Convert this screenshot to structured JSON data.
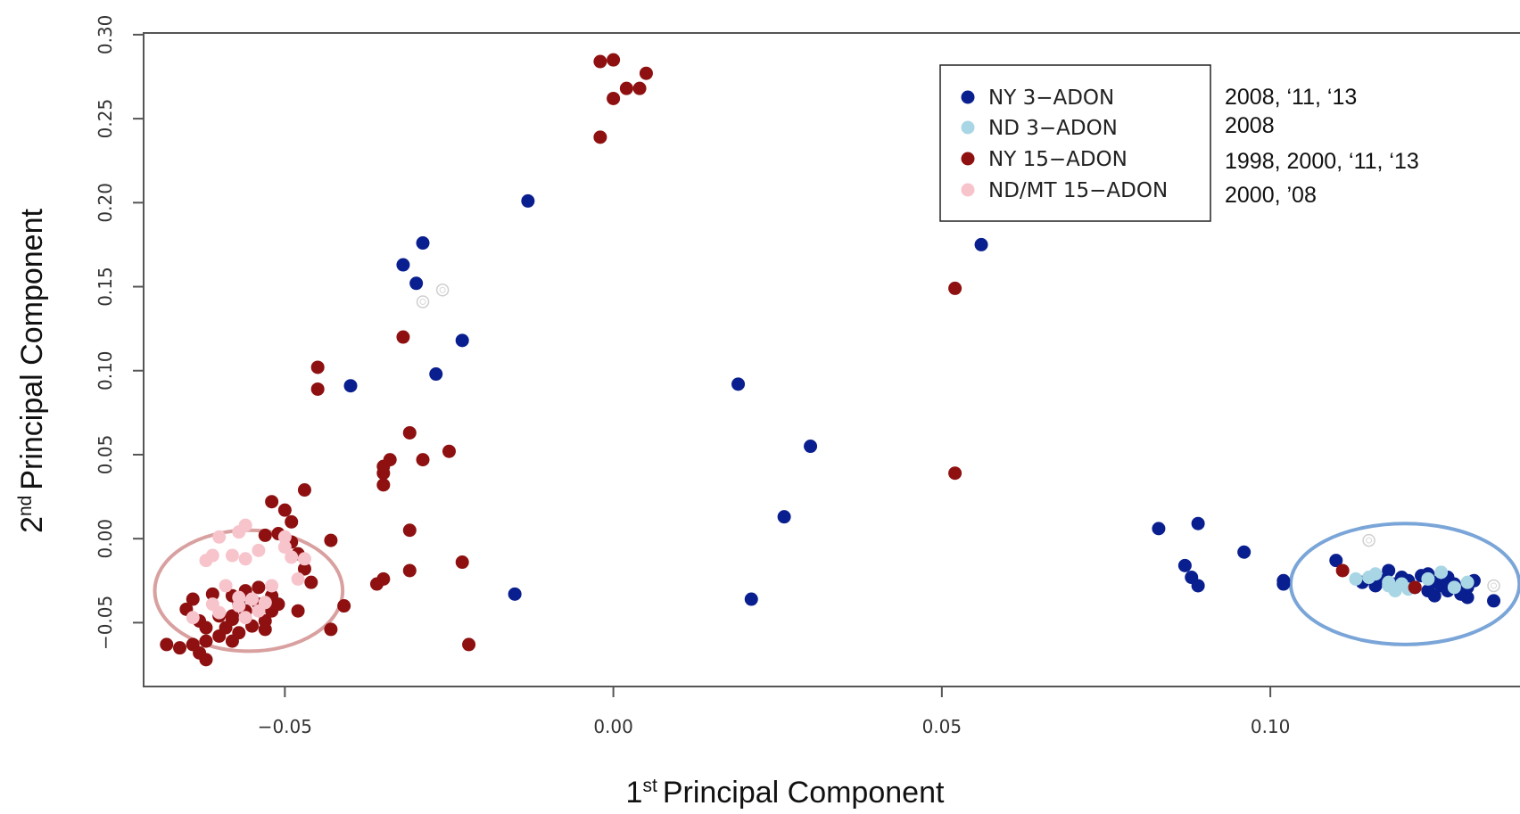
{
  "chart_data": {
    "type": "scatter",
    "xlabel": {
      "ordinal": "1",
      "suffix": "st",
      "text": "Principal Component"
    },
    "ylabel": {
      "ordinal": "2",
      "suffix": "nd",
      "text": "Principal Component"
    },
    "xlim": [
      -0.0715,
      0.138
    ],
    "ylim": [
      -0.088,
      0.301
    ],
    "x_ticks": [
      {
        "value": -0.05,
        "label": "−0.05"
      },
      {
        "value": 0.0,
        "label": "0.00"
      },
      {
        "value": 0.05,
        "label": "0.05"
      },
      {
        "value": 0.1,
        "label": "0.10"
      }
    ],
    "y_ticks": [
      {
        "value": -0.05,
        "label": "−0.05"
      },
      {
        "value": 0.0,
        "label": "0.00"
      },
      {
        "value": 0.05,
        "label": "0.05"
      },
      {
        "value": 0.1,
        "label": "0.10"
      },
      {
        "value": 0.15,
        "label": "0.15"
      },
      {
        "value": 0.2,
        "label": "0.20"
      },
      {
        "value": 0.25,
        "label": "0.25"
      },
      {
        "value": 0.3,
        "label": "0.30"
      }
    ],
    "grid": false,
    "legend_position": "top-right",
    "series": [
      {
        "name": "NY 3−ADON",
        "note": "2008, ‘11, ‘13",
        "color": "#0a1f8f",
        "points": [
          [
            -0.013,
            0.201
          ],
          [
            -0.029,
            0.176
          ],
          [
            -0.032,
            0.163
          ],
          [
            -0.03,
            0.152
          ],
          [
            -0.023,
            0.118
          ],
          [
            -0.027,
            0.098
          ],
          [
            -0.04,
            0.091
          ],
          [
            -0.015,
            -0.033
          ],
          [
            0.019,
            0.092
          ],
          [
            0.03,
            0.055
          ],
          [
            0.026,
            0.013
          ],
          [
            0.021,
            -0.036
          ],
          [
            0.056,
            0.175
          ],
          [
            0.083,
            0.006
          ],
          [
            0.089,
            0.009
          ],
          [
            0.096,
            -0.008
          ],
          [
            0.087,
            -0.016
          ],
          [
            0.088,
            -0.023
          ],
          [
            0.089,
            -0.028
          ],
          [
            0.102,
            -0.025
          ],
          [
            0.102,
            -0.027
          ],
          [
            0.11,
            -0.013
          ],
          [
            0.114,
            -0.026
          ],
          [
            0.116,
            -0.028
          ],
          [
            0.117,
            -0.025
          ],
          [
            0.118,
            -0.019
          ],
          [
            0.12,
            -0.023
          ],
          [
            0.121,
            -0.025
          ],
          [
            0.122,
            -0.029
          ],
          [
            0.123,
            -0.022
          ],
          [
            0.124,
            -0.031
          ],
          [
            0.125,
            -0.026
          ],
          [
            0.125,
            -0.034
          ],
          [
            0.126,
            -0.028
          ],
          [
            0.127,
            -0.023
          ],
          [
            0.127,
            -0.031
          ],
          [
            0.128,
            -0.027
          ],
          [
            0.129,
            -0.033
          ],
          [
            0.13,
            -0.029
          ],
          [
            0.13,
            -0.035
          ],
          [
            0.134,
            -0.037
          ],
          [
            0.131,
            -0.025
          ],
          [
            0.124,
            -0.021
          ],
          [
            0.119,
            -0.027
          ]
        ]
      },
      {
        "name": "ND 3−ADON",
        "note": "2008",
        "color": "#a9d6e5",
        "points": [
          [
            0.113,
            -0.024
          ],
          [
            0.115,
            -0.023
          ],
          [
            0.116,
            -0.021
          ],
          [
            0.118,
            -0.028
          ],
          [
            0.119,
            -0.031
          ],
          [
            0.12,
            -0.027
          ],
          [
            0.124,
            -0.024
          ],
          [
            0.126,
            -0.02
          ],
          [
            0.128,
            -0.029
          ],
          [
            0.13,
            -0.026
          ],
          [
            0.121,
            -0.03
          ],
          [
            0.118,
            -0.026
          ]
        ]
      },
      {
        "name": "NY 15−ADON",
        "note": "1998, 2000, ‘11, ‘13",
        "color": "#8e1010",
        "points": [
          [
            -0.002,
            0.239
          ],
          [
            -0.002,
            0.284
          ],
          [
            0.0,
            0.285
          ],
          [
            0.0,
            0.262
          ],
          [
            0.002,
            0.268
          ],
          [
            0.004,
            0.268
          ],
          [
            0.005,
            0.277
          ],
          [
            -0.032,
            0.12
          ],
          [
            -0.045,
            0.102
          ],
          [
            -0.045,
            0.089
          ],
          [
            -0.031,
            0.063
          ],
          [
            -0.034,
            0.047
          ],
          [
            -0.035,
            0.043
          ],
          [
            -0.035,
            0.039
          ],
          [
            -0.035,
            0.032
          ],
          [
            -0.029,
            0.047
          ],
          [
            -0.025,
            0.052
          ],
          [
            -0.031,
            0.005
          ],
          [
            -0.031,
            -0.019
          ],
          [
            -0.035,
            -0.024
          ],
          [
            -0.036,
            -0.027
          ],
          [
            -0.023,
            -0.014
          ],
          [
            -0.022,
            -0.063
          ],
          [
            0.052,
            0.149
          ],
          [
            0.052,
            0.039
          ],
          [
            0.111,
            -0.019
          ],
          [
            0.122,
            -0.029
          ],
          [
            -0.047,
            0.029
          ],
          [
            -0.052,
            0.022
          ],
          [
            -0.05,
            0.017
          ],
          [
            -0.049,
            0.01
          ],
          [
            -0.051,
            0.003
          ],
          [
            -0.053,
            0.002
          ],
          [
            -0.049,
            -0.002
          ],
          [
            -0.048,
            -0.009
          ],
          [
            -0.043,
            -0.001
          ],
          [
            -0.047,
            -0.018
          ],
          [
            -0.046,
            -0.026
          ],
          [
            -0.041,
            -0.04
          ],
          [
            -0.043,
            -0.054
          ],
          [
            -0.048,
            -0.043
          ],
          [
            -0.054,
            -0.029
          ],
          [
            -0.056,
            -0.031
          ],
          [
            -0.058,
            -0.034
          ],
          [
            -0.061,
            -0.033
          ],
          [
            -0.064,
            -0.036
          ],
          [
            -0.065,
            -0.042
          ],
          [
            -0.063,
            -0.049
          ],
          [
            -0.062,
            -0.053
          ],
          [
            -0.06,
            -0.058
          ],
          [
            -0.058,
            -0.061
          ],
          [
            -0.057,
            -0.056
          ],
          [
            -0.055,
            -0.052
          ],
          [
            -0.053,
            -0.049
          ],
          [
            -0.052,
            -0.043
          ],
          [
            -0.051,
            -0.039
          ],
          [
            -0.052,
            -0.034
          ],
          [
            -0.054,
            -0.039
          ],
          [
            -0.056,
            -0.043
          ],
          [
            -0.058,
            -0.046
          ],
          [
            -0.06,
            -0.046
          ],
          [
            -0.062,
            -0.061
          ],
          [
            -0.064,
            -0.063
          ],
          [
            -0.066,
            -0.065
          ],
          [
            -0.068,
            -0.063
          ],
          [
            -0.063,
            -0.068
          ],
          [
            -0.062,
            -0.072
          ],
          [
            -0.058,
            -0.048
          ],
          [
            -0.053,
            -0.054
          ],
          [
            -0.055,
            -0.036
          ],
          [
            -0.057,
            -0.039
          ],
          [
            -0.059,
            -0.053
          ]
        ]
      },
      {
        "name": "ND/MT 15−ADON",
        "note": "2000, ’08",
        "color": "#f7c4cc",
        "points": [
          [
            -0.06,
            0.001
          ],
          [
            -0.057,
            0.004
          ],
          [
            -0.056,
            0.008
          ],
          [
            -0.054,
            -0.007
          ],
          [
            -0.056,
            -0.012
          ],
          [
            -0.058,
            -0.01
          ],
          [
            -0.061,
            -0.01
          ],
          [
            -0.062,
            -0.013
          ],
          [
            -0.05,
            -0.005
          ],
          [
            -0.049,
            -0.011
          ],
          [
            -0.048,
            -0.024
          ],
          [
            -0.047,
            -0.012
          ],
          [
            -0.059,
            -0.028
          ],
          [
            -0.061,
            -0.039
          ],
          [
            -0.06,
            -0.044
          ],
          [
            -0.057,
            -0.04
          ],
          [
            -0.055,
            -0.036
          ],
          [
            -0.053,
            -0.038
          ],
          [
            -0.056,
            -0.047
          ],
          [
            -0.054,
            -0.043
          ],
          [
            -0.064,
            -0.047
          ],
          [
            -0.057,
            -0.035
          ],
          [
            -0.052,
            -0.028
          ],
          [
            -0.05,
            0.001
          ]
        ]
      }
    ],
    "open_markers": [
      [
        -0.029,
        0.141
      ],
      [
        -0.026,
        0.148
      ],
      [
        0.115,
        -0.001
      ],
      [
        0.134,
        -0.028
      ]
    ],
    "annotations": [
      {
        "shape": "ellipse",
        "color": "#d9a0a0",
        "cx": -0.0555,
        "cy": -0.031,
        "rx": 0.0143,
        "ry": 0.036
      },
      {
        "shape": "ellipse",
        "color": "#7aa5d8",
        "cx": 0.1205,
        "cy": -0.027,
        "rx": 0.0174,
        "ry": 0.036
      }
    ]
  }
}
